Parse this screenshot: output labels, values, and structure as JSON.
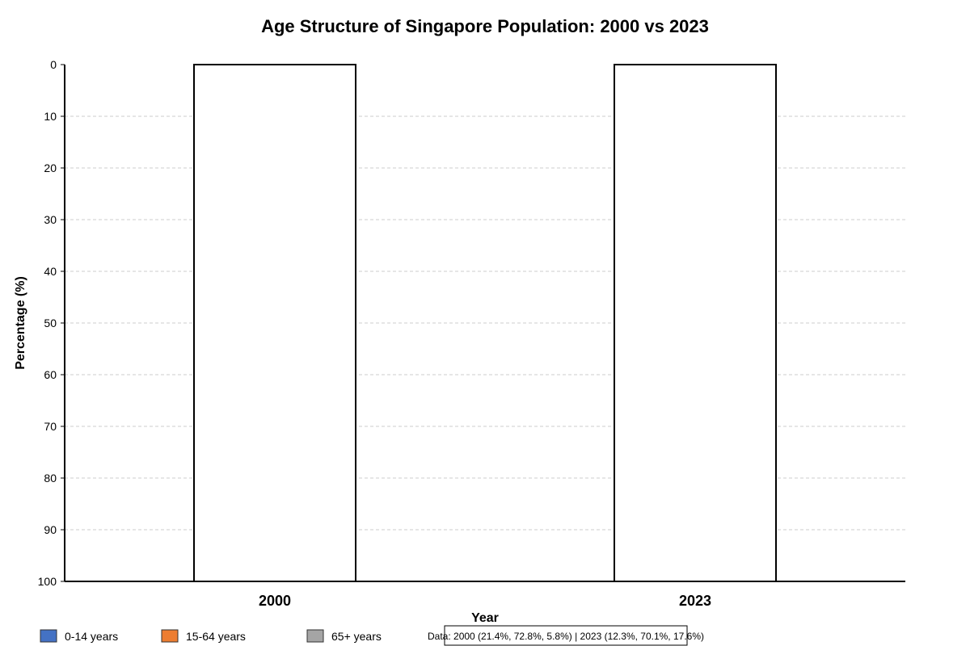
{
  "chart_data": {
    "type": "bar",
    "title": "Age Structure of Singapore Population: 2000 vs 2023",
    "xlabel": "Year",
    "ylabel": "Percentage (%)",
    "categories": [
      "2000",
      "2023"
    ],
    "ylim": [
      0,
      100
    ],
    "y_axis_inverted": true,
    "yticks": [
      "0",
      "10",
      "20",
      "30",
      "40",
      "50",
      "60",
      "70",
      "80",
      "90",
      "100"
    ],
    "grid": "horizontal-dashed",
    "series": [
      {
        "name": "0-14 years",
        "color": "#4472c4",
        "values": [
          21.4,
          12.3
        ]
      },
      {
        "name": "15-64 years",
        "color": "#ed7d31",
        "values": [
          72.8,
          70.1
        ]
      },
      {
        "name": "65+ years",
        "color": "#a5a5a5",
        "values": [
          5.8,
          17.6
        ]
      }
    ],
    "rendered_bar_fill": "#ffffff",
    "legend_position": "bottom-left",
    "note": "Data: 2000 (21.4%, 72.8%, 5.8%) | 2023 (12.3%, 70.1%, 17.6%)"
  }
}
